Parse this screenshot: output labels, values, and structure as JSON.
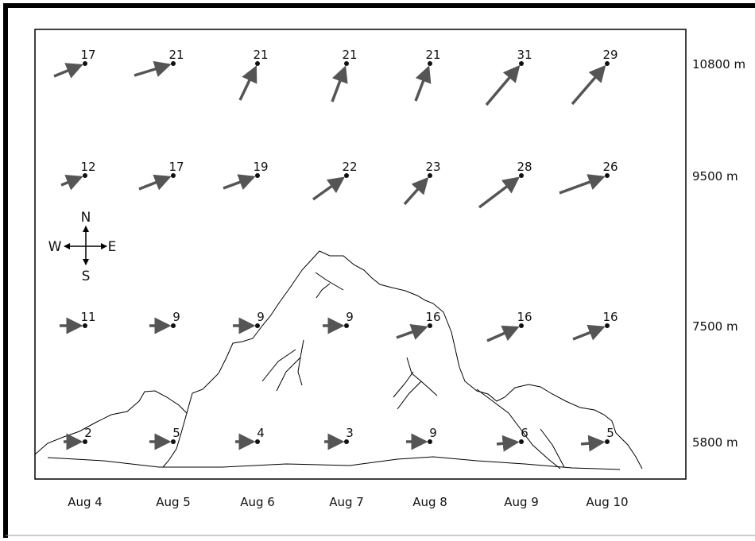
{
  "dates": [
    "Aug 4",
    "Aug 5",
    "Aug 6",
    "Aug 7",
    "Aug 8",
    "Aug 9",
    "Aug 10"
  ],
  "altitudes": [
    "10800 m",
    "9500 m",
    "7500 m",
    "5800 m"
  ],
  "wind_speeds": [
    [
      17,
      21,
      21,
      21,
      21,
      31,
      29
    ],
    [
      12,
      17,
      19,
      22,
      23,
      28,
      26
    ],
    [
      11,
      9,
      9,
      9,
      16,
      16,
      16
    ],
    [
      2,
      5,
      4,
      3,
      9,
      6,
      5
    ]
  ],
  "compass": {
    "north": "N",
    "south": "S",
    "west": "W",
    "east": "E"
  }
}
